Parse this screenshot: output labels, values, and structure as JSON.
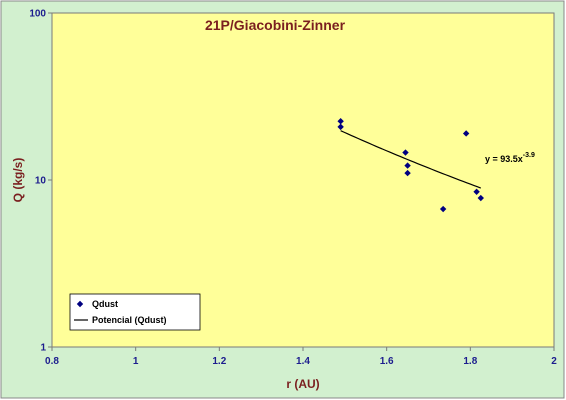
{
  "chart_data": {
    "type": "scatter",
    "title": "21P/Giacobini-Zinner",
    "xlabel": "r (AU)",
    "ylabel": "Q (kg/s)",
    "xlim": [
      0.8,
      2
    ],
    "ylim": [
      1,
      100
    ],
    "y_scale": "log",
    "grid": false,
    "x_ticks": [
      "0.8",
      "1",
      "1.2",
      "1.4",
      "1.6",
      "1.8",
      "2"
    ],
    "y_ticks": [
      "1",
      "10",
      "100"
    ],
    "legend_position": "bottom-left",
    "series": [
      {
        "name": "Qdust",
        "marker": "diamond",
        "color": "#000080",
        "points": [
          {
            "x": 1.49,
            "y": 22.5
          },
          {
            "x": 1.49,
            "y": 20.8
          },
          {
            "x": 1.645,
            "y": 14.6
          },
          {
            "x": 1.65,
            "y": 12.2
          },
          {
            "x": 1.65,
            "y": 11.0
          },
          {
            "x": 1.735,
            "y": 6.7
          },
          {
            "x": 1.79,
            "y": 19.0
          },
          {
            "x": 1.815,
            "y": 8.5
          },
          {
            "x": 1.825,
            "y": 7.8
          }
        ]
      },
      {
        "name": "Potencial (Qdust)",
        "type": "power_fit",
        "color": "#000000",
        "coefficient": 93.5,
        "exponent": -3.9,
        "x_range": [
          1.49,
          1.825
        ]
      }
    ],
    "annotations": [
      {
        "text_base": "y = 93.5x",
        "text_sup": "-3.9"
      }
    ]
  },
  "colors": {
    "page_background": "#ffffff",
    "frame_background": "#d2f0cf",
    "plot_background": "#ffff99",
    "title_color": "#7a1f1f",
    "axis_text_color": "#1c1c8e",
    "axis_label_color": "#7a1f1f"
  }
}
